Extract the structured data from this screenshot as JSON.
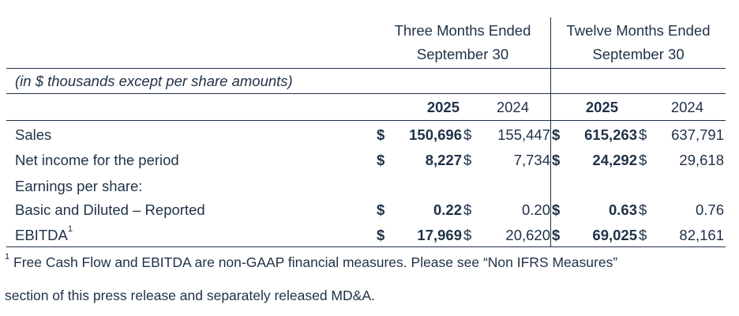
{
  "header": {
    "three_months_line1": "Three Months Ended",
    "three_months_line2": "September 30",
    "twelve_months_line1": "Twelve Months Ended",
    "twelve_months_line2": "September 30",
    "units_note": "(in $ thousands except per share amounts)",
    "years": [
      "2025",
      "2024",
      "2025",
      "2024"
    ]
  },
  "rows": {
    "sales": {
      "label": "Sales",
      "cur": [
        "$",
        "$",
        "$",
        "$"
      ],
      "values": [
        "150,696",
        "155,447",
        "615,263",
        "637,791"
      ]
    },
    "net_income": {
      "label": "Net income for the period",
      "cur": [
        "$",
        "$",
        "$",
        "$"
      ],
      "values": [
        "8,227",
        "7,734",
        "24,292",
        "29,618"
      ]
    },
    "eps_heading": {
      "label": "Earnings per share:"
    },
    "basic": {
      "label": "Basic and Diluted – Reported",
      "cur": [
        "$",
        "$",
        "$",
        "$"
      ],
      "values": [
        "0.22",
        "0.20",
        "0.63",
        "0.76"
      ]
    },
    "ebitda": {
      "label": "EBITDA",
      "sup": "1",
      "cur": [
        "$",
        "$",
        "$",
        "$"
      ],
      "values": [
        "17,969",
        "20,620",
        "69,025",
        "82,161"
      ]
    }
  },
  "footnote": {
    "marker": "1",
    "line1": "Free Cash Flow and EBITDA are non-GAAP financial measures. Please see “Non IFRS Measures”",
    "line2": "section of this press release and separately released MD&A."
  }
}
